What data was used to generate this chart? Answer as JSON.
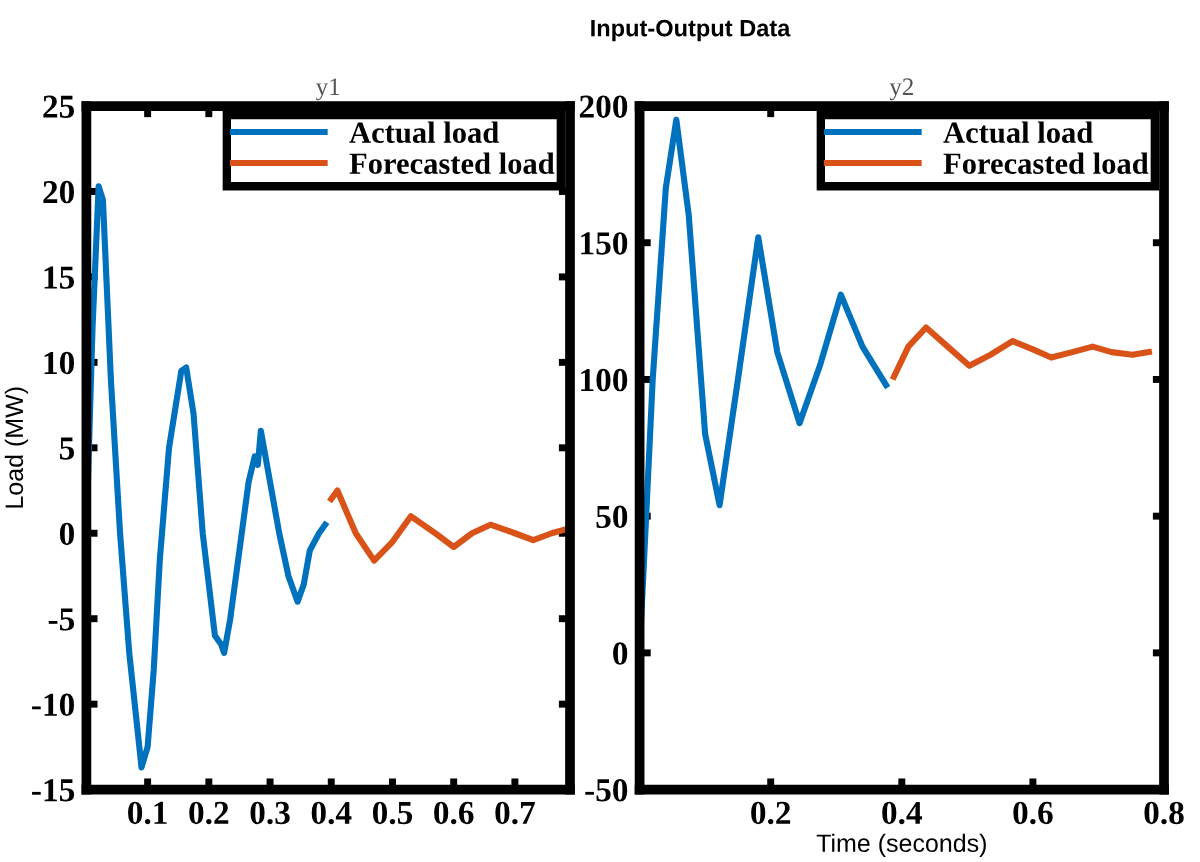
{
  "chart_data": [
    {
      "type": "line",
      "title": "y1",
      "ylabel": "Load (MW)",
      "xlim": [
        0,
        0.79
      ],
      "xticks": [
        0.1,
        0.2,
        0.3,
        0.4,
        0.5,
        0.6,
        0.7
      ],
      "ylim": [
        -15,
        25
      ],
      "yticks": [
        -15,
        -10,
        -5,
        0,
        5,
        10,
        15,
        20,
        25
      ],
      "grid": false,
      "legend": "top right",
      "series": [
        {
          "name": "Actual load",
          "color": "#0072bd",
          "x": [
            0,
            0.01,
            0.02,
            0.027,
            0.04,
            0.055,
            0.07,
            0.085,
            0.09,
            0.1,
            0.11,
            0.12,
            0.135,
            0.155,
            0.163,
            0.175,
            0.19,
            0.21,
            0.22,
            0.225,
            0.235,
            0.25,
            0.265,
            0.275,
            0.28,
            0.285,
            0.3,
            0.315,
            0.33,
            0.345,
            0.355,
            0.365,
            0.38,
            0.39
          ],
          "values": [
            0,
            12,
            20.3,
            19.5,
            9,
            0,
            -7,
            -12,
            -13.7,
            -12.5,
            -8,
            -1.5,
            5,
            9.5,
            9.7,
            7,
            0,
            -6,
            -6.5,
            -7,
            -5,
            -1,
            3,
            4.5,
            4,
            6,
            3,
            0,
            -2.5,
            -4,
            -3,
            -1,
            0,
            0.5
          ]
        },
        {
          "name": "Forecasted load",
          "color": "#d95319",
          "x": [
            0.4,
            0.41,
            0.44,
            0.47,
            0.5,
            0.53,
            0.57,
            0.6,
            0.63,
            0.66,
            0.7,
            0.73,
            0.76,
            0.79
          ],
          "values": [
            2,
            2.5,
            0,
            -1.6,
            -0.5,
            1,
            0,
            -0.8,
            0,
            0.5,
            0,
            -0.4,
            0,
            0.3
          ]
        }
      ]
    },
    {
      "type": "line",
      "title": "y2",
      "xlabel": "Time (seconds)",
      "annotations": [
        "Input-Output Data"
      ],
      "xlim": [
        0,
        0.8
      ],
      "xticks": [
        0.2,
        0.4,
        0.6,
        0.8
      ],
      "ylim": [
        -50,
        200
      ],
      "yticks": [
        -50,
        0,
        50,
        100,
        150,
        200
      ],
      "grid": false,
      "legend": "top right",
      "series": [
        {
          "name": "Actual load",
          "color": "#0072bd",
          "x": [
            0,
            0.02,
            0.04,
            0.056,
            0.075,
            0.1,
            0.122,
            0.15,
            0.181,
            0.21,
            0.244,
            0.275,
            0.307,
            0.34,
            0.376
          ],
          "values": [
            0,
            100,
            170,
            195,
            160,
            80,
            54,
            100,
            152,
            110,
            84,
            105,
            131,
            112,
            98
          ]
        },
        {
          "name": "Forecasted load",
          "color": "#d95319",
          "x": [
            0.388,
            0.41,
            0.437,
            0.47,
            0.503,
            0.535,
            0.569,
            0.6,
            0.628,
            0.66,
            0.691,
            0.72,
            0.752,
            0.777
          ],
          "values": [
            101,
            112,
            119,
            112,
            105,
            109,
            114,
            111,
            108,
            110,
            112,
            110,
            109,
            110
          ]
        }
      ]
    }
  ]
}
